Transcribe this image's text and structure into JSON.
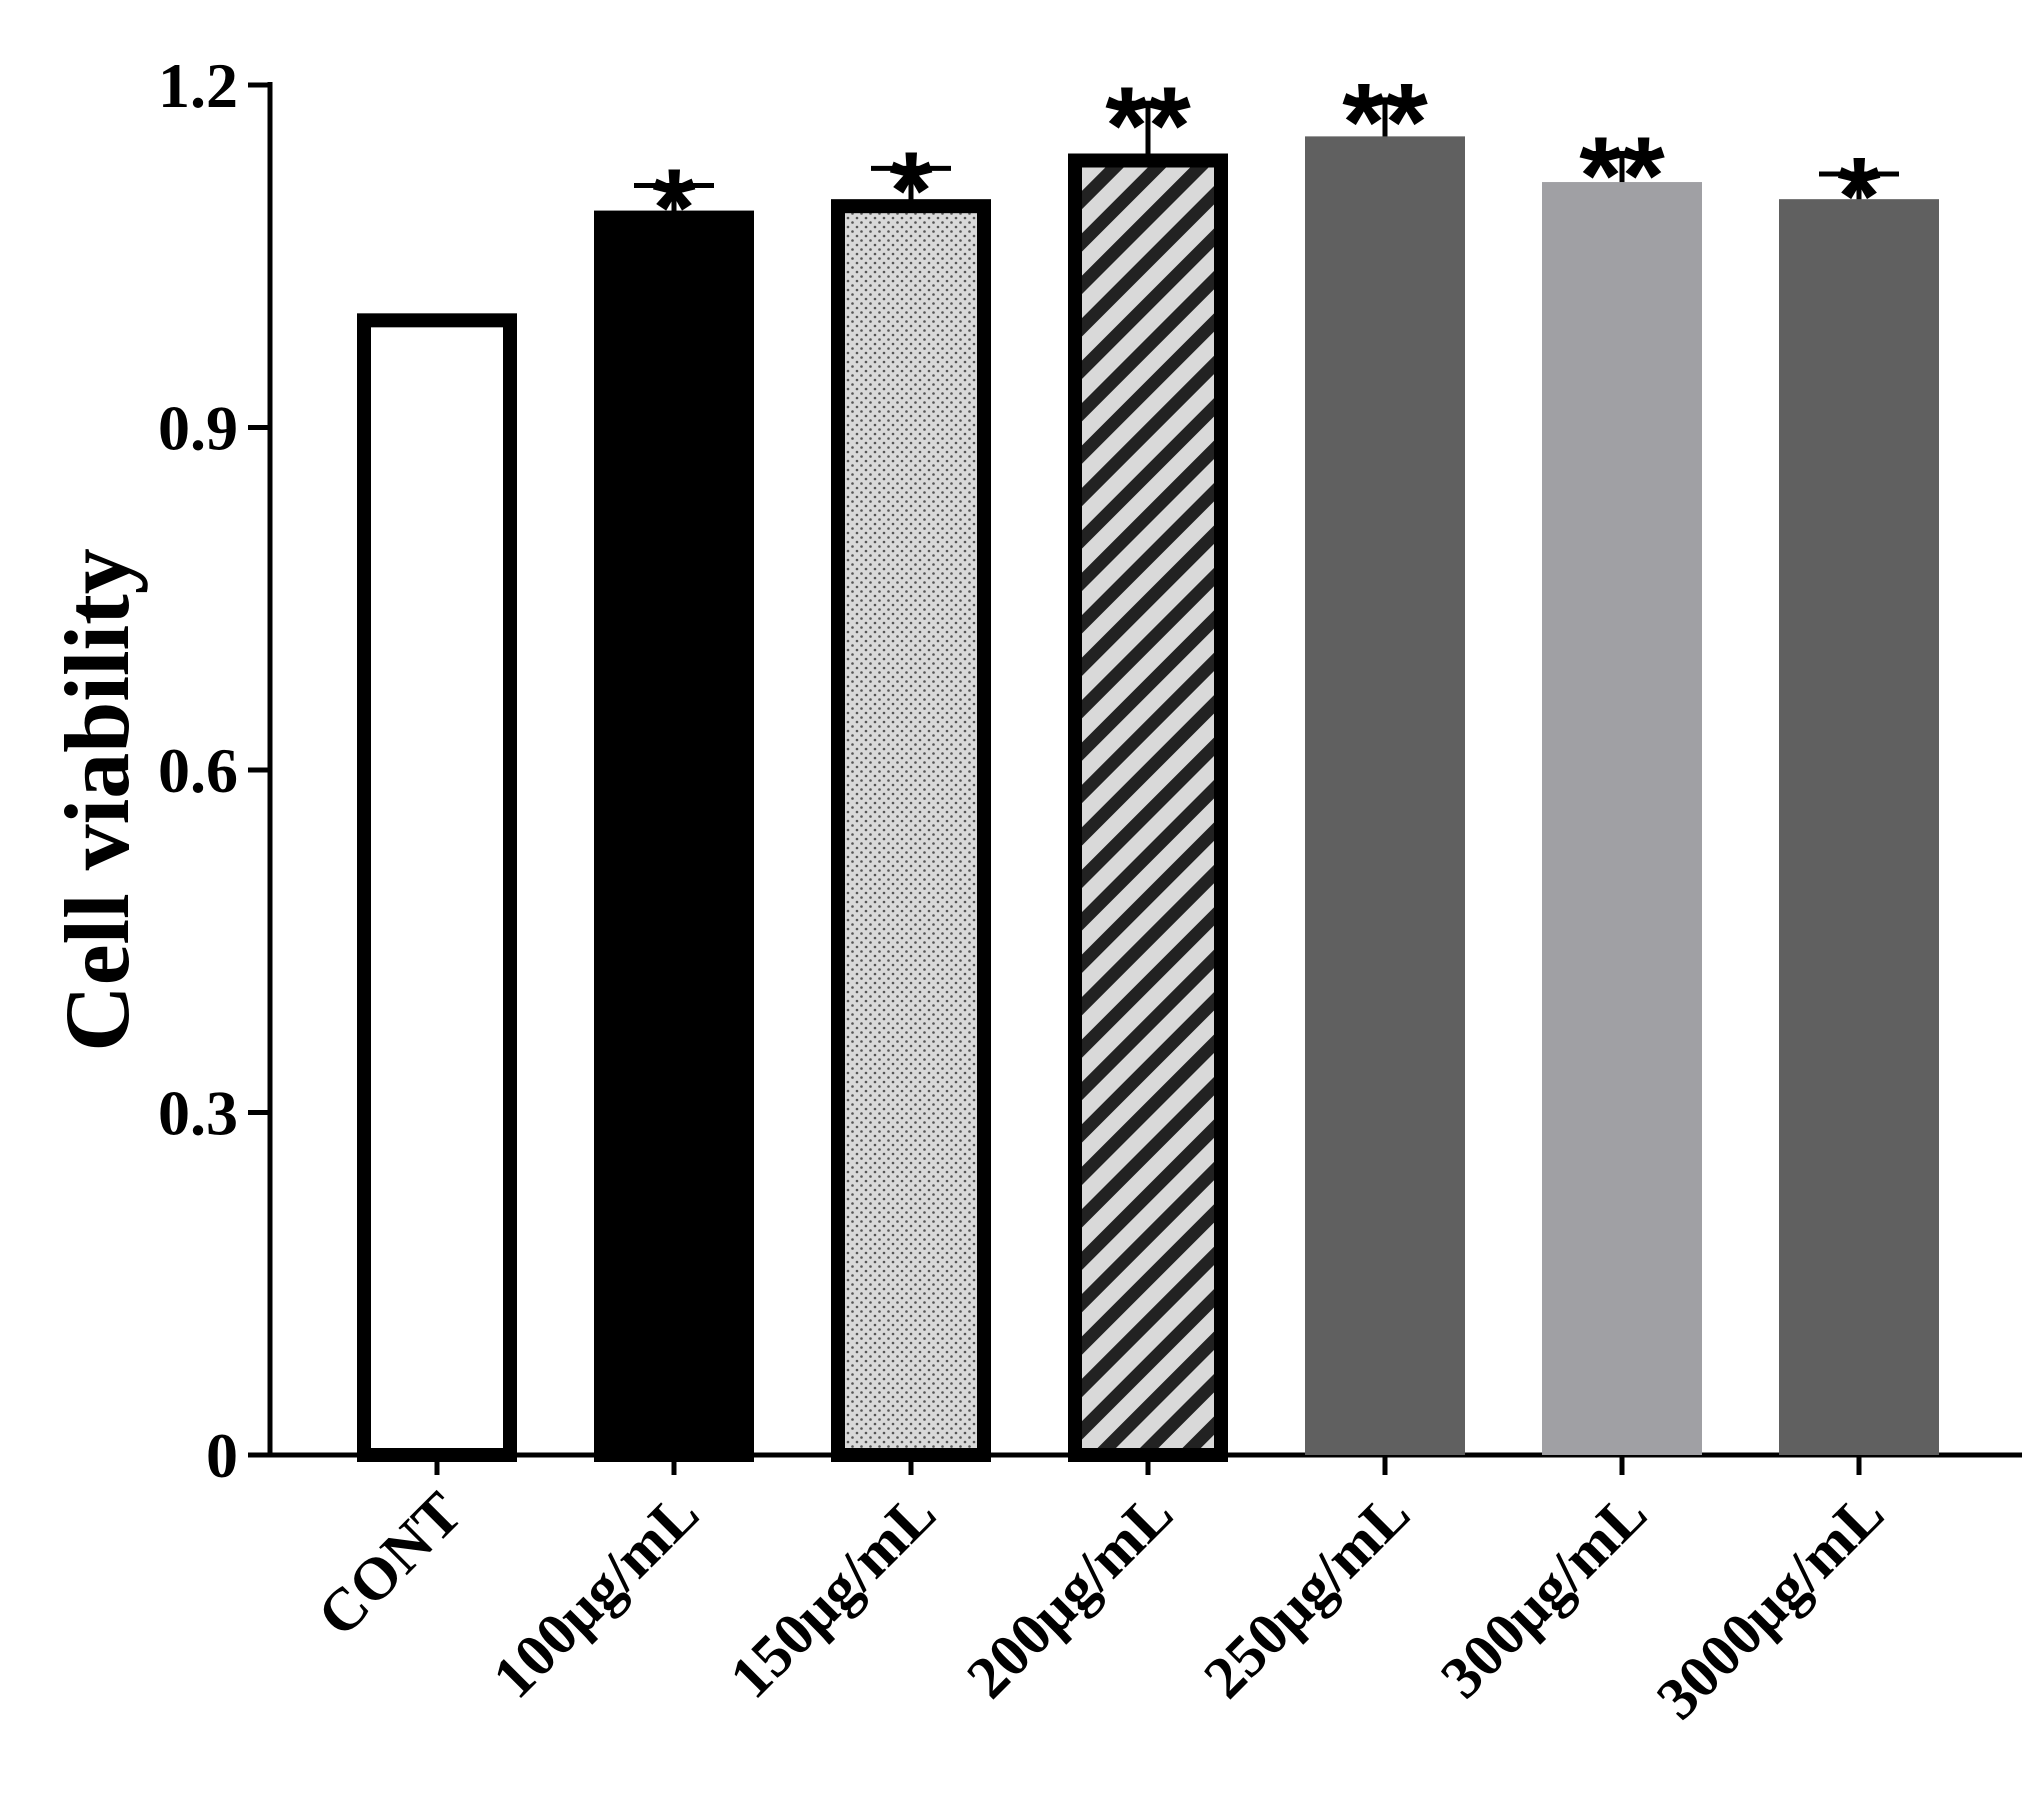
{
  "chart_data": {
    "type": "bar",
    "title": "",
    "xlabel": "",
    "ylabel": "Cell viability",
    "ylim": [
      0,
      1.2
    ],
    "yticks": [
      0,
      0.3,
      0.6,
      0.9,
      1.2
    ],
    "ytick_labels": [
      "0",
      "0.3",
      "0.6",
      "0.9",
      "1.2"
    ],
    "categories": [
      "CONT",
      "100μg/mL",
      "150μg/mL",
      "200μg/mL",
      "250μg/mL",
      "300μg/mL",
      "3000μg/mL"
    ],
    "values": [
      1.0,
      1.09,
      1.1,
      1.14,
      1.155,
      1.115,
      1.1
    ],
    "errors": [
      0.0,
      0.022,
      0.027,
      0.044,
      0.032,
      0.025,
      0.022
    ],
    "significance": [
      "",
      "*",
      "*",
      "**",
      "**",
      "**",
      "*"
    ],
    "bar_styles": [
      {
        "fill": "#ffffff",
        "pattern": "none",
        "outlined": true
      },
      {
        "fill": "#000000",
        "pattern": "none",
        "outlined": true
      },
      {
        "fill": "#d9d9d9",
        "pattern": "dots",
        "outlined": true
      },
      {
        "fill": "#d9d9d9",
        "pattern": "diagonal-stripes",
        "outlined": true
      },
      {
        "fill": "#606060",
        "pattern": "none",
        "outlined": false
      },
      {
        "fill": "#a0a0a4",
        "pattern": "none",
        "outlined": false
      },
      {
        "fill": "#606060",
        "pattern": "none",
        "outlined": false
      }
    ],
    "grid": false,
    "legend": "none"
  }
}
